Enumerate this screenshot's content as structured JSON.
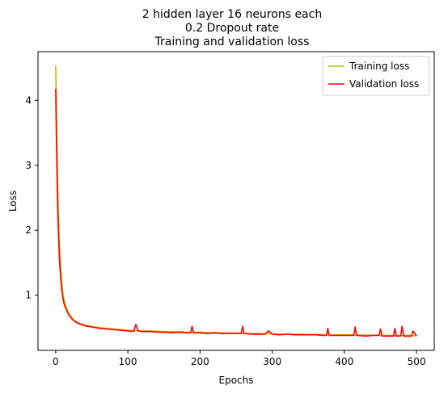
{
  "colors": {
    "training": "#c8b400",
    "validation": "#ff0000",
    "axis": "#000000",
    "legend_border": "#cccccc"
  },
  "chart_data": {
    "type": "line",
    "title_lines": [
      "2 hidden layer 16 neurons each",
      "0.2 Dropout rate",
      "Training and validation loss"
    ],
    "xlabel": "Epochs",
    "ylabel": "Loss",
    "xlim": [
      -24.5,
      524.5
    ],
    "ylim": [
      0.15,
      4.75
    ],
    "xticks": [
      0,
      100,
      200,
      300,
      400,
      500
    ],
    "yticks": [
      1,
      2,
      3,
      4
    ],
    "grid": false,
    "legend_position": "top-right",
    "series": [
      {
        "name": "Training loss",
        "color_key": "training",
        "x": [
          0,
          1,
          2,
          3,
          4,
          5,
          6,
          8,
          10,
          12,
          15,
          18,
          22,
          26,
          30,
          35,
          40,
          50,
          60,
          70,
          80,
          90,
          100,
          110,
          120,
          130,
          140,
          150,
          160,
          170,
          175,
          180,
          190,
          200,
          210,
          220,
          230,
          240,
          250,
          260,
          270,
          280,
          290,
          300,
          310,
          320,
          330,
          340,
          350,
          360,
          370,
          380,
          390,
          400,
          410,
          420,
          430,
          440,
          450,
          460,
          470,
          480,
          490,
          500
        ],
        "y": [
          4.53,
          3.9,
          3.2,
          2.6,
          2.2,
          1.85,
          1.6,
          1.25,
          1.02,
          0.9,
          0.8,
          0.72,
          0.66,
          0.61,
          0.58,
          0.56,
          0.54,
          0.52,
          0.5,
          0.49,
          0.48,
          0.47,
          0.46,
          0.455,
          0.45,
          0.45,
          0.445,
          0.44,
          0.44,
          0.435,
          0.44,
          0.43,
          0.43,
          0.43,
          0.425,
          0.425,
          0.42,
          0.42,
          0.415,
          0.41,
          0.41,
          0.41,
          0.405,
          0.405,
          0.4,
          0.4,
          0.4,
          0.4,
          0.395,
          0.395,
          0.395,
          0.39,
          0.39,
          0.39,
          0.39,
          0.385,
          0.385,
          0.385,
          0.385,
          0.38,
          0.38,
          0.38,
          0.38,
          0.375
        ]
      },
      {
        "name": "Validation loss",
        "color_key": "validation",
        "x": [
          0,
          1,
          2,
          3,
          4,
          5,
          6,
          8,
          10,
          12,
          15,
          18,
          22,
          26,
          30,
          35,
          40,
          50,
          60,
          70,
          80,
          90,
          100,
          108,
          111,
          114,
          120,
          130,
          140,
          150,
          160,
          170,
          180,
          187,
          189,
          191,
          200,
          210,
          220,
          230,
          240,
          250,
          257,
          259,
          261,
          270,
          280,
          290,
          295,
          300,
          310,
          320,
          330,
          340,
          350,
          360,
          370,
          375,
          377,
          379,
          390,
          400,
          410,
          413,
          415,
          417,
          430,
          440,
          448,
          450,
          452,
          460,
          468,
          470,
          472,
          478,
          480,
          482,
          490,
          493,
          495,
          500
        ],
        "y": [
          4.18,
          3.4,
          2.75,
          2.25,
          1.9,
          1.6,
          1.4,
          1.12,
          0.95,
          0.85,
          0.77,
          0.7,
          0.64,
          0.6,
          0.57,
          0.55,
          0.53,
          0.51,
          0.49,
          0.48,
          0.47,
          0.46,
          0.45,
          0.44,
          0.55,
          0.45,
          0.44,
          0.44,
          0.43,
          0.43,
          0.42,
          0.43,
          0.42,
          0.42,
          0.52,
          0.42,
          0.42,
          0.41,
          0.42,
          0.41,
          0.41,
          0.41,
          0.41,
          0.52,
          0.41,
          0.4,
          0.4,
          0.4,
          0.45,
          0.4,
          0.39,
          0.4,
          0.39,
          0.39,
          0.39,
          0.39,
          0.38,
          0.38,
          0.49,
          0.38,
          0.38,
          0.38,
          0.38,
          0.38,
          0.51,
          0.38,
          0.37,
          0.38,
          0.38,
          0.48,
          0.37,
          0.37,
          0.37,
          0.49,
          0.37,
          0.37,
          0.52,
          0.37,
          0.37,
          0.37,
          0.45,
          0.37
        ]
      }
    ]
  }
}
